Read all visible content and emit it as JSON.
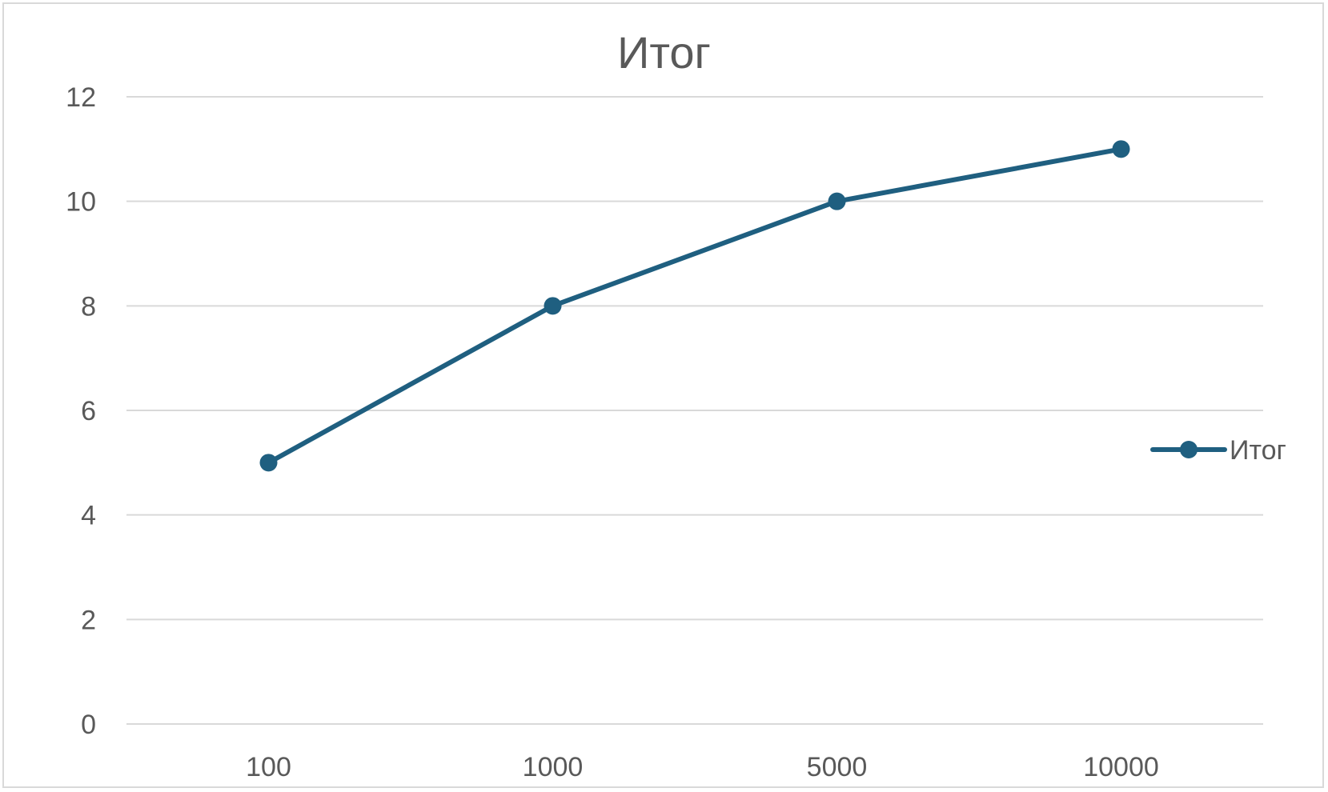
{
  "chart_data": {
    "type": "line",
    "title": "Итог",
    "xlabel": "",
    "ylabel": "",
    "categories": [
      "100",
      "1000",
      "5000",
      "10000"
    ],
    "series": [
      {
        "name": "Итог",
        "values": [
          5,
          8,
          10,
          11
        ],
        "color": "#1f5f80"
      }
    ],
    "ylim": [
      0,
      12
    ],
    "yticks": [
      "0",
      "2",
      "4",
      "6",
      "8",
      "10",
      "12"
    ],
    "grid": true,
    "legend_position": "right",
    "gridline_color": "#d9d9d9"
  }
}
